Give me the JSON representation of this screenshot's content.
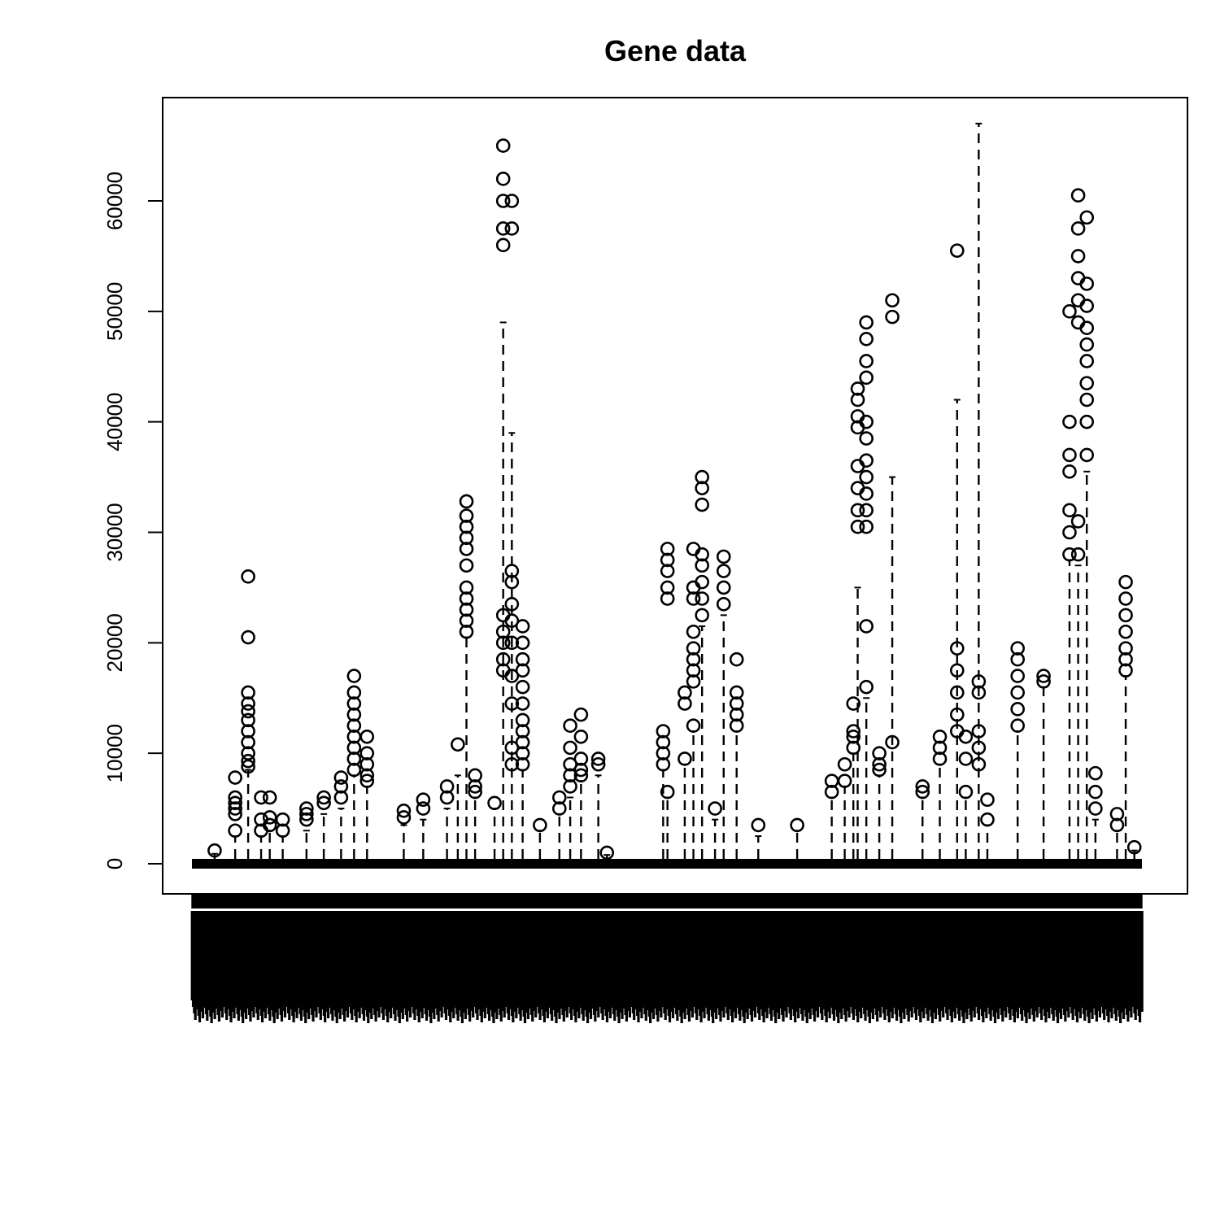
{
  "chart_data": {
    "type": "box",
    "title": "Gene data",
    "xlabel": "",
    "ylabel": "",
    "ylim": [
      -2500,
      70000
    ],
    "y_ticks": [
      0,
      10000,
      20000,
      30000,
      40000,
      50000,
      60000
    ],
    "y_tick_labels": [
      "0",
      "10000",
      "20000",
      "30000",
      "40000",
      "50000",
      "60000"
    ],
    "grid": false,
    "legend": "none",
    "series": [
      {
        "x": 21,
        "whisker": 900,
        "outliers": [
          1200
        ]
      },
      {
        "x": 40,
        "whisker": 2500,
        "outliers": [
          3000,
          4500,
          5000,
          5500,
          6000,
          7800
        ]
      },
      {
        "x": 52,
        "whisker": 8500,
        "outliers": [
          8800,
          9300,
          10000,
          11000,
          12000,
          13000,
          13800,
          14500,
          15500,
          20500,
          26000
        ]
      },
      {
        "x": 64,
        "whisker": 2500,
        "outliers": [
          3000,
          4000,
          6000
        ]
      },
      {
        "x": 72,
        "whisker": 3000,
        "outliers": [
          3500,
          4200,
          6000
        ]
      },
      {
        "x": 84,
        "whisker": 2500,
        "outliers": [
          3000,
          4000
        ]
      },
      {
        "x": 106,
        "whisker": 3000,
        "outliers": [
          4000,
          4500,
          5000
        ]
      },
      {
        "x": 122,
        "whisker": 4500,
        "outliers": [
          5500,
          6000
        ]
      },
      {
        "x": 138,
        "whisker": 5000,
        "outliers": [
          6000,
          7000,
          7800
        ]
      },
      {
        "x": 150,
        "whisker": 8000,
        "outliers": [
          8500,
          9500,
          10500,
          11500,
          12500,
          13500,
          14500,
          15500,
          17000
        ]
      },
      {
        "x": 162,
        "whisker": 7000,
        "outliers": [
          7500,
          8000,
          9000,
          10000,
          11500
        ]
      },
      {
        "x": 196,
        "whisker": 3500,
        "outliers": [
          4200,
          4800
        ]
      },
      {
        "x": 214,
        "whisker": 4000,
        "outliers": [
          5000,
          5800
        ]
      },
      {
        "x": 236,
        "whisker": 5000,
        "outliers": [
          6000,
          7000
        ]
      },
      {
        "x": 246,
        "whisker": 8000,
        "outliers": [
          10800
        ]
      },
      {
        "x": 254,
        "whisker": 20500,
        "outliers": [
          21000,
          22000,
          23000,
          24000,
          25000,
          27000,
          28500,
          29500,
          30500,
          31500,
          32800
        ]
      },
      {
        "x": 262,
        "whisker": 6000,
        "outliers": [
          6500,
          7000,
          8000
        ]
      },
      {
        "x": 280,
        "whisker": 5000,
        "outliers": [
          5500
        ]
      },
      {
        "x": 288,
        "whisker": 49000,
        "outliers": [
          17500,
          18500,
          20000,
          21000,
          22500,
          56000,
          57500,
          60000,
          62000,
          65000
        ]
      },
      {
        "x": 296,
        "whisker": 39000,
        "outliers": [
          9000,
          10500,
          14500,
          17000,
          20000,
          22000,
          23500,
          25500,
          26500,
          57500,
          60000
        ]
      },
      {
        "x": 306,
        "whisker": 8500,
        "outliers": [
          9000,
          10000,
          11000,
          12000,
          13000,
          14500,
          16000,
          17500,
          18500,
          20000,
          21500
        ]
      },
      {
        "x": 322,
        "whisker": 3000,
        "outliers": [
          3500
        ]
      },
      {
        "x": 340,
        "whisker": 4500,
        "outliers": [
          5000,
          6000
        ]
      },
      {
        "x": 350,
        "whisker": 6000,
        "outliers": [
          7000,
          8000,
          9000,
          10500,
          12500
        ]
      },
      {
        "x": 360,
        "whisker": 7500,
        "outliers": [
          8000,
          8500,
          9500,
          11500,
          13500
        ]
      },
      {
        "x": 376,
        "whisker": 8000,
        "outliers": [
          9000,
          9500
        ]
      },
      {
        "x": 384,
        "whisker": 800,
        "outliers": [
          1000
        ]
      },
      {
        "x": 436,
        "whisker": 8500,
        "outliers": [
          9000,
          10000,
          11000,
          12000
        ]
      },
      {
        "x": 440,
        "whisker": 6000,
        "outliers": [
          6500,
          24000,
          25000,
          26500,
          27500,
          28500
        ]
      },
      {
        "x": 456,
        "whisker": 9000,
        "outliers": [
          9500,
          14500,
          15500
        ]
      },
      {
        "x": 464,
        "whisker": 12000,
        "outliers": [
          12500,
          16500,
          17500,
          18500,
          19500,
          21000,
          24000,
          25000,
          28500
        ]
      },
      {
        "x": 472,
        "whisker": 21500,
        "outliers": [
          22500,
          24000,
          25500,
          27000,
          28000,
          32500,
          34000,
          35000
        ]
      },
      {
        "x": 484,
        "whisker": 4000,
        "outliers": [
          5000
        ]
      },
      {
        "x": 492,
        "whisker": 22500,
        "outliers": [
          23500,
          25000,
          26500,
          27800
        ]
      },
      {
        "x": 504,
        "whisker": 12000,
        "outliers": [
          12500,
          13500,
          14500,
          15500,
          18500
        ]
      },
      {
        "x": 524,
        "whisker": 2500,
        "outliers": [
          3500
        ]
      },
      {
        "x": 560,
        "whisker": 3000,
        "outliers": [
          3500
        ]
      },
      {
        "x": 592,
        "whisker": 6000,
        "outliers": [
          6500,
          7500
        ]
      },
      {
        "x": 604,
        "whisker": 7000,
        "outliers": [
          7500,
          9000
        ]
      },
      {
        "x": 612,
        "whisker": 10000,
        "outliers": [
          10500,
          11500,
          12000,
          14500
        ]
      },
      {
        "x": 616,
        "whisker": 25000,
        "outliers": [
          30500,
          32000,
          34000,
          36000,
          39500,
          40500,
          42000,
          43000
        ]
      },
      {
        "x": 624,
        "whisker": 15000,
        "outliers": [
          16000,
          21500,
          30500,
          32000,
          33500,
          35000,
          36500,
          38500,
          40000,
          44000,
          45500,
          47500,
          49000
        ]
      },
      {
        "x": 636,
        "whisker": 8000,
        "outliers": [
          8500,
          9000,
          10000
        ]
      },
      {
        "x": 648,
        "whisker": 35000,
        "outliers": [
          11000,
          49500,
          51000
        ]
      },
      {
        "x": 676,
        "whisker": 6000,
        "outliers": [
          6500,
          7000
        ]
      },
      {
        "x": 692,
        "whisker": 9000,
        "outliers": [
          9500,
          10500,
          11500
        ]
      },
      {
        "x": 708,
        "whisker": 42000,
        "outliers": [
          12000,
          13500,
          15500,
          17500,
          19500,
          55500
        ]
      },
      {
        "x": 716,
        "whisker": 6000,
        "outliers": [
          6500,
          9500,
          11500
        ]
      },
      {
        "x": 728,
        "whisker": 67000,
        "outliers": [
          9000,
          10500,
          12000,
          15500,
          16500
        ]
      },
      {
        "x": 736,
        "whisker": 3500,
        "outliers": [
          4000,
          5800
        ]
      },
      {
        "x": 764,
        "whisker": 12000,
        "outliers": [
          12500,
          14000,
          15500,
          17000,
          18500,
          19500
        ]
      },
      {
        "x": 788,
        "whisker": 16000,
        "outliers": [
          16500,
          17000
        ]
      },
      {
        "x": 812,
        "whisker": 27500,
        "outliers": [
          28000,
          30000,
          32000,
          35500,
          37000,
          40000,
          50000
        ]
      },
      {
        "x": 820,
        "whisker": 27000,
        "outliers": [
          28000,
          31000,
          49000,
          51000,
          53000,
          55000,
          57500,
          60500
        ]
      },
      {
        "x": 828,
        "whisker": 35500,
        "outliers": [
          37000,
          40000,
          42000,
          43500,
          45500,
          47000,
          48500,
          50500,
          52500,
          58500
        ]
      },
      {
        "x": 836,
        "whisker": 4000,
        "outliers": [
          5000,
          6500,
          8200
        ]
      },
      {
        "x": 856,
        "whisker": 3000,
        "outliers": [
          3500,
          4500
        ]
      },
      {
        "x": 864,
        "whisker": 17000,
        "outliers": [
          17500,
          18500,
          19500,
          21000,
          22500,
          24000,
          25500
        ]
      },
      {
        "x": 872,
        "whisker": 1200,
        "outliers": [
          1500
        ]
      }
    ]
  }
}
